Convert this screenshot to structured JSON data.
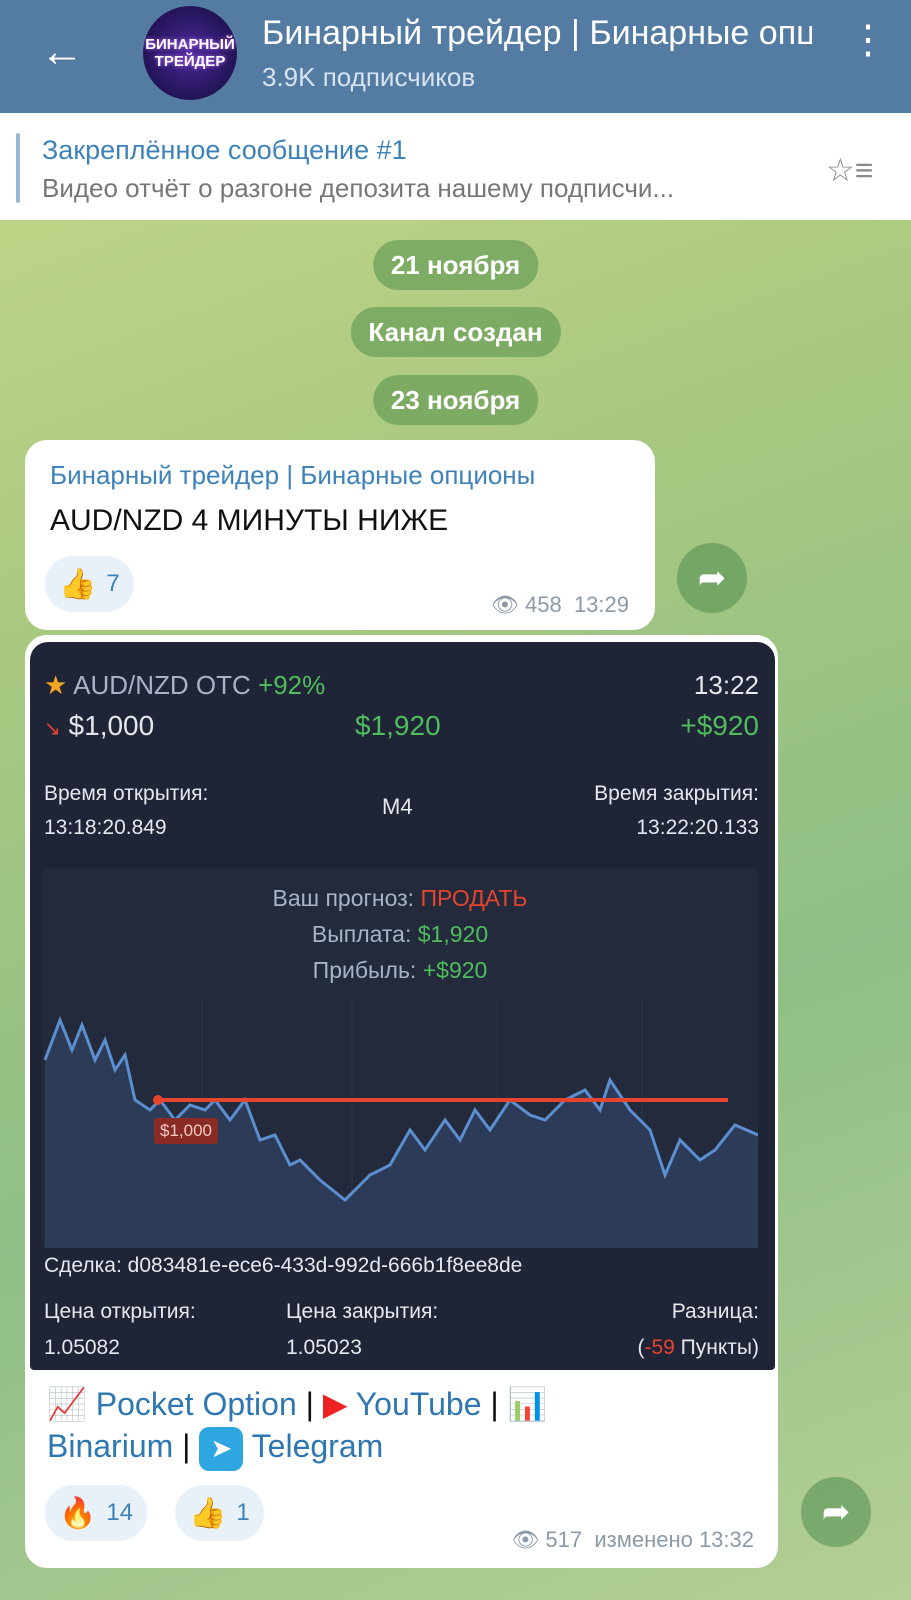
{
  "header": {
    "title": "Бинарный трейдер | Бинарные опционы",
    "subscribers": "3.9K подписчиков",
    "avatar_text": [
      "БИНАРНЫЙ",
      "ТРЕЙДЕР"
    ]
  },
  "pinned": {
    "title": "Закреплённое сообщение #1",
    "text": "Видео отчёт о разгоне депозита нашему подписчи..."
  },
  "dates": [
    "21 ноября",
    "Канал создан",
    "23 ноября"
  ],
  "message1": {
    "sender": "Бинарный трейдер | Бинарные опционы",
    "text": "AUD/NZD 4 МИНУТЫ НИЖЕ",
    "reaction": {
      "emoji": "👍",
      "count": "7"
    },
    "views": "458",
    "time": "13:29"
  },
  "message2": {
    "trade": {
      "pair": "AUD/NZD OTC",
      "payout_pct": "+92%",
      "time": "13:22",
      "amount": "$1,000",
      "payout": "$1,920",
      "profit": "+$920",
      "open_label": "Время открытия:",
      "open_time": "13:18:20.849",
      "timeframe": "M4",
      "close_label": "Время закрытия:",
      "close_time": "13:22:20.133",
      "forecast_label": "Ваш прогноз:",
      "forecast": "ПРОДАТЬ",
      "payout_label": "Выплата:",
      "payout_value": "$1,920",
      "profit_label": "Прибыль:",
      "profit_value": "+$920",
      "price_tag": "$1,000",
      "deal": "Сделка: d083481e-ece6-433d-992d-666b1f8ee8de",
      "open_price_label": "Цена открытия:",
      "open_price": "1.05082",
      "close_price_label": "Цена закрытия:",
      "close_price": "1.05023",
      "diff_label": "Разница:",
      "diff_open": "(",
      "diff_value": "-59",
      "diff_unit": " Пункты)"
    },
    "links": {
      "pocket": "Pocket Option",
      "youtube": "YouTube",
      "binarium": "Binarium",
      "telegram": "Telegram",
      "sep": "|"
    },
    "reactions": [
      {
        "emoji": "🔥",
        "count": "14"
      },
      {
        "emoji": "👍",
        "count": "1"
      }
    ],
    "views": "517",
    "time": "изменено 13:32"
  },
  "colors": {
    "header": "#547ca3",
    "link": "#3d82b8",
    "green": "#4fbd5e",
    "red": "#e5442f"
  }
}
